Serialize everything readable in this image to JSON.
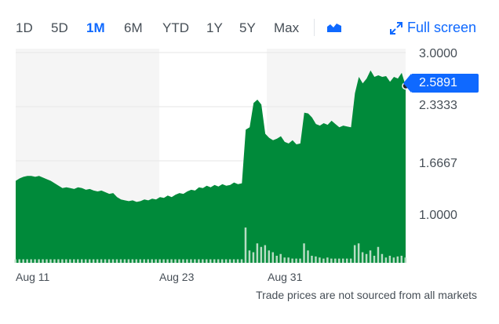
{
  "toolbar": {
    "ranges": [
      "1D",
      "5D",
      "1M",
      "6M",
      "YTD",
      "1Y",
      "5Y",
      "Max"
    ],
    "active_range": "1M",
    "chart_type_icon": "area-chart-icon",
    "fullscreen_label": "Full screen",
    "fullscreen_icon": "expand-arrows-icon"
  },
  "colors": {
    "accent": "#0f69ff",
    "area": "#008a3a",
    "volume": "#b7dcc3",
    "shade": "#f5f5f5"
  },
  "footer_note": "Trade prices are not sourced from all markets",
  "chart_data": {
    "type": "area",
    "title": "",
    "xlabel": "",
    "ylabel": "",
    "ylim": [
      0.41,
      3.05
    ],
    "y_ticks": [
      "3.0000",
      "2.3333",
      "1.6667",
      "1.0000"
    ],
    "x_ticks": [
      {
        "label": "Aug 11",
        "index": 0
      },
      {
        "label": "Aug 23",
        "index": 37
      },
      {
        "label": "Aug 31",
        "index": 68
      }
    ],
    "current_price": "2.5891",
    "current_value": 2.5891,
    "price": [
      1.42,
      1.45,
      1.47,
      1.48,
      1.48,
      1.47,
      1.48,
      1.46,
      1.44,
      1.42,
      1.39,
      1.36,
      1.33,
      1.34,
      1.33,
      1.32,
      1.34,
      1.33,
      1.31,
      1.32,
      1.3,
      1.29,
      1.3,
      1.28,
      1.26,
      1.27,
      1.22,
      1.19,
      1.18,
      1.17,
      1.18,
      1.16,
      1.17,
      1.19,
      1.18,
      1.2,
      1.19,
      1.22,
      1.21,
      1.24,
      1.22,
      1.25,
      1.27,
      1.26,
      1.29,
      1.31,
      1.3,
      1.34,
      1.33,
      1.36,
      1.34,
      1.37,
      1.35,
      1.38,
      1.36,
      1.37,
      1.4,
      1.38,
      1.39,
      2.05,
      2.08,
      2.38,
      2.42,
      2.36,
      2.0,
      1.95,
      1.92,
      1.94,
      1.97,
      1.9,
      1.88,
      1.92,
      1.87,
      1.88,
      2.26,
      2.25,
      2.2,
      2.12,
      2.1,
      2.13,
      2.11,
      2.16,
      2.12,
      2.08,
      2.1,
      2.09,
      2.08,
      2.5,
      2.7,
      2.62,
      2.68,
      2.78,
      2.7,
      2.72,
      2.7,
      2.71,
      2.64,
      2.7,
      2.68,
      2.75,
      2.5891
    ],
    "volume_relative": [
      0.1,
      0.1,
      0.1,
      0.1,
      0.1,
      0.1,
      0.1,
      0.1,
      0.1,
      0.1,
      0.1,
      0.1,
      0.1,
      0.1,
      0.1,
      0.1,
      0.1,
      0.1,
      0.1,
      0.1,
      0.1,
      0.1,
      0.1,
      0.1,
      0.1,
      0.1,
      0.1,
      0.1,
      0.1,
      0.1,
      0.1,
      0.1,
      0.1,
      0.1,
      0.1,
      0.1,
      0.1,
      0.1,
      0.1,
      0.1,
      0.1,
      0.1,
      0.1,
      0.1,
      0.1,
      0.1,
      0.1,
      0.1,
      0.1,
      0.1,
      0.1,
      0.1,
      0.1,
      0.1,
      0.1,
      0.1,
      0.1,
      0.1,
      0.1,
      1.0,
      0.35,
      0.3,
      0.55,
      0.45,
      0.5,
      0.35,
      0.3,
      0.2,
      0.25,
      0.15,
      0.15,
      0.12,
      0.12,
      0.12,
      0.55,
      0.35,
      0.2,
      0.18,
      0.15,
      0.12,
      0.15,
      0.12,
      0.12,
      0.12,
      0.12,
      0.12,
      0.12,
      0.5,
      0.55,
      0.3,
      0.25,
      0.35,
      0.2,
      0.45,
      0.25,
      0.15,
      0.2,
      0.15,
      0.18,
      0.2,
      0.15
    ]
  }
}
